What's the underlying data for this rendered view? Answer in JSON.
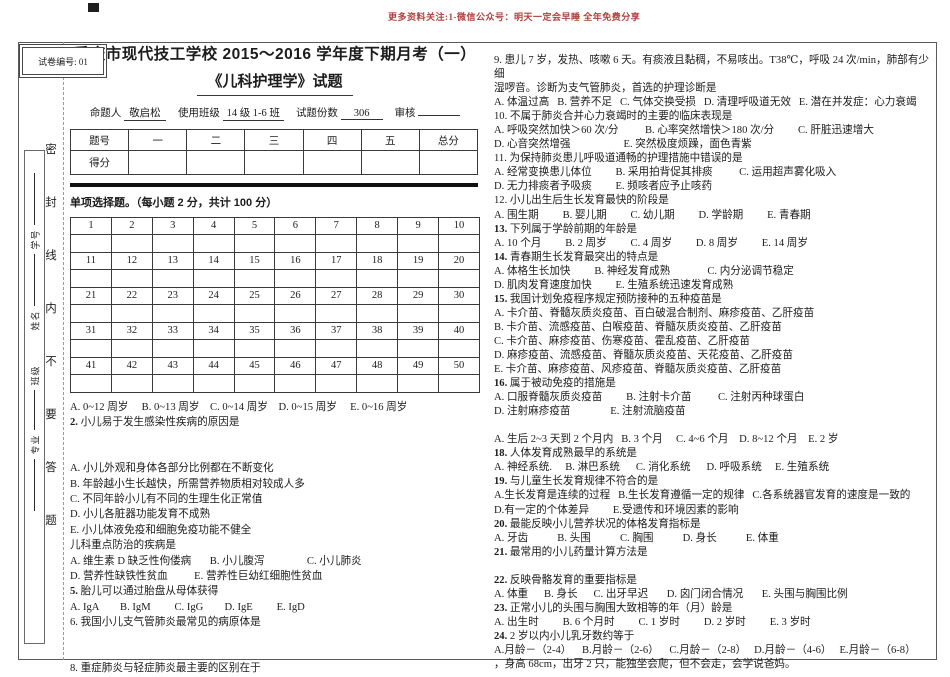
{
  "banner": {
    "text": "更多资料关注:1-微信公众号：明天一定会早睡 全年免费分享",
    "color": "#b0413e"
  },
  "paper_code": "试卷编号: 01",
  "seal": {
    "fields": [
      "学号",
      "姓名",
      "班级",
      "专业"
    ],
    "chars": [
      "密",
      "封",
      "线",
      "内",
      "不",
      "要",
      "答",
      "题"
    ]
  },
  "header": {
    "title_line1": "重庆市现代技工学校 2015～2016 学年度下期月考（一）",
    "title_line2": "《儿科护理学》试题",
    "meta": [
      {
        "label": "命题人",
        "value": "敬启松"
      },
      {
        "label": "使用班级",
        "value": "14 级 1-6 班"
      },
      {
        "label": "试题份数",
        "value": "306"
      },
      {
        "label": "审核",
        "value": " "
      }
    ]
  },
  "score_table": {
    "header_row": [
      "题号",
      "一",
      "二",
      "三",
      "四",
      "五",
      "总分"
    ],
    "value_row_label": "得分"
  },
  "section_heading": "单项选择题。（每小题 2 分，共计 100 分）",
  "answer_grid": {
    "rows": [
      [
        1,
        2,
        3,
        4,
        5,
        6,
        7,
        8,
        9,
        10
      ],
      [
        11,
        12,
        13,
        14,
        15,
        16,
        17,
        18,
        19,
        20
      ],
      [
        21,
        22,
        23,
        24,
        25,
        26,
        27,
        28,
        29,
        30
      ],
      [
        31,
        32,
        33,
        34,
        35,
        36,
        37,
        38,
        39,
        40
      ],
      [
        41,
        42,
        43,
        44,
        45,
        46,
        47,
        48,
        49,
        50
      ]
    ]
  },
  "questions_left": [
    {
      "q": "",
      "t": "A. 0~12 周岁     B. 0~13 周岁    C. 0~14 周岁    D. 0~15 周岁     E. 0~16 周岁"
    },
    {
      "q": "2.",
      "t": "小儿易于发生感染性疾病的原因是"
    },
    {
      "q": "",
      "t": ""
    },
    {
      "q": "",
      "t": ""
    },
    {
      "q": "",
      "t": "A. 小儿外观和身体各部分比例都在不断变化"
    },
    {
      "q": "",
      "t": "B. 年龄越小生长越快，所需营养物质相对较成人多"
    },
    {
      "q": "",
      "t": "C. 不同年龄小儿有不同的生理生化正常值"
    },
    {
      "q": "",
      "t": "D. 小儿各脏器功能发育不成熟"
    },
    {
      "q": "",
      "t": "E. 小儿体液免疫和细胞免疫功能不健全"
    },
    {
      "q": "",
      "t": "儿科重点防治的疾病是"
    },
    {
      "q": "",
      "t": "A. 维生素 D 缺乏性佝偻病       B. 小儿腹泻                C. 小儿肺炎"
    },
    {
      "q": "",
      "t": "D. 营养性缺铁性贫血          E. 营养性巨幼红细胞性贫血"
    },
    {
      "q": "5.",
      "t": "胎儿可以通过胎盘从母体获得"
    },
    {
      "q": "",
      "t": "A. IgA        B. IgM         C. IgG        D. IgE         E. IgD"
    },
    {
      "q": "",
      "t": "6. 我国小儿支气管肺炎最常见的病原体是"
    },
    {
      "q": "",
      "t": ""
    },
    {
      "q": "",
      "t": ""
    },
    {
      "q": "",
      "t": "8. 重症肺炎与轻症肺炎最主要的区别在于"
    }
  ],
  "questions_right": [
    {
      "q": "",
      "t": "9. 患儿 7 岁，发热、咳嗽 6 天。有痰液且黏稠，不易咳出。T38℃，呼吸 24 次/min，肺部有少细"
    },
    {
      "q": "",
      "t": "湿啰音。诊断为支气管肺炎，首选的护理诊断是"
    },
    {
      "q": "",
      "t": "A. 体温过高   B. 营养不足   C. 气体交换受损   D. 清理呼吸道无效   E. 潜在并发症：心力衰竭"
    },
    {
      "q": "",
      "t": "10. 不属于肺炎合并心力衰竭时的主要的临床表现是"
    },
    {
      "q": "",
      "t": "A. 呼吸突然加快＞60 次/分          B. 心率突然增快＞180 次/分         C. 肝脏迅速增大"
    },
    {
      "q": "",
      "t": "D. 心音突然增强                    E. 突然极度烦躁，面色青紫"
    },
    {
      "q": "",
      "t": "11. 为保持肺炎患儿呼吸道通畅的护理措施中错误的是"
    },
    {
      "q": "",
      "t": "A. 经常变换患儿体位         B. 采用拍背促其排痰          C. 运用超声雾化吸入"
    },
    {
      "q": "",
      "t": "D. 无力排痰者予吸痰         E. 频咳者应予止咳药"
    },
    {
      "q": "",
      "t": "12. 小儿出生后生长发育最快的阶段是"
    },
    {
      "q": "",
      "t": "A. 围生期         B. 婴儿期         C. 幼儿期         D. 学龄期         E. 青春期"
    },
    {
      "q": "13.",
      "t": "下列属于学龄前期的年龄是"
    },
    {
      "q": "",
      "t": "A. 10 个月         B. 2 周岁         C. 4 周岁         D. 8 周岁         E. 14 周岁"
    },
    {
      "q": "14.",
      "t": "青春期生长发育最突出的特点是"
    },
    {
      "q": "",
      "t": "A. 体格生长加快         B. 神经发育成熟              C. 内分泌调节稳定"
    },
    {
      "q": "",
      "t": "D. 肌肉发育速度加快         E. 生殖系统迅速发育成熟"
    },
    {
      "q": "15.",
      "t": "我国计划免疫程序规定预防接种的五种疫苗是"
    },
    {
      "q": "",
      "t": "A. 卡介苗、脊髓灰质炎疫苗、百白破混合制剂、麻疹疫苗、乙肝疫苗"
    },
    {
      "q": "",
      "t": "B. 卡介苗、流感疫苗、白喉疫苗、脊髓灰质炎疫苗、乙肝疫苗"
    },
    {
      "q": "",
      "t": "C. 卡介苗、麻疹疫苗、伤寒疫苗、霍乱疫苗、乙肝疫苗"
    },
    {
      "q": "",
      "t": "D. 麻疹疫苗、流感疫苗、脊髓灰质炎疫苗、天花疫苗、乙肝疫苗"
    },
    {
      "q": "",
      "t": "E. 卡介苗、麻疹疫苗、风疹疫苗、脊髓灰质炎疫苗、乙肝疫苗"
    },
    {
      "q": "16.",
      "t": "属于被动免疫的措施是"
    },
    {
      "q": "",
      "t": "A. 口服脊髓灰质炎疫苗         B. 注射卡介苗          C. 注射丙种球蛋白"
    },
    {
      "q": "",
      "t": "D. 注射麻疹疫苗               E. 注射流脑疫苗"
    },
    {
      "q": "",
      "t": ""
    },
    {
      "q": "",
      "t": "A. 生后 2~3 天到 2 个月内   B. 3 个月     C. 4~6 个月    D. 8~12 个月    E. 2 岁"
    },
    {
      "q": "18.",
      "t": "人体发育成熟最早的系统是"
    },
    {
      "q": "",
      "t": "A. 神经系统.     B. 淋巴系统      C. 消化系统      D. 呼吸系统     E. 生殖系统"
    },
    {
      "q": "19.",
      "t": "与儿童生长发育规律不符合的是"
    },
    {
      "q": "",
      "t": "A.生长发育是连续的过程   B.生长发育遵循一定的规律   C.各系统器官发育的速度是一致的"
    },
    {
      "q": "",
      "t": "D.有一定的个体差异         E.受遗传和环境因素的影响"
    },
    {
      "q": "20.",
      "t": "最能反映小儿营养状况的体格发育指标是"
    },
    {
      "q": "",
      "t": "A. 牙齿           B. 头围           C. 胸围           D. 身长           E. 体重"
    },
    {
      "q": "21.",
      "t": "最常用的小儿药量计算方法是"
    },
    {
      "q": "",
      "t": ""
    },
    {
      "q": "22.",
      "t": "反映骨骼发育的重要指标是"
    },
    {
      "q": "",
      "t": "A. 体重      B. 身长      C. 出牙早迟       D. 囟门闭合情况       E. 头围与胸围比例"
    },
    {
      "q": "23.",
      "t": "正常小儿的头围与胸围大致相等的年（月）龄是"
    },
    {
      "q": "",
      "t": "A. 出生时         B. 6 个月时         C. 1 岁时         D. 2 岁时         E. 3 岁时"
    },
    {
      "q": "24.",
      "t": "2 岁以内小儿乳牙数约等于"
    },
    {
      "q": "",
      "t": "A.月龄－（2-4）    B.月龄－（2-6）    C.月龄－（2-8）   D.月龄－（4-6）   E.月龄－（6-8）"
    },
    {
      "q": "",
      "t": "，身高 68cm，出牙 2 只，能独坐会爬，但不会走，会学说爸妈。"
    }
  ]
}
